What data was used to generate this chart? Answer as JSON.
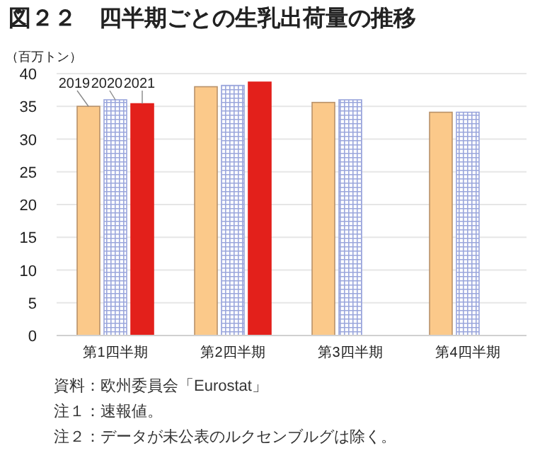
{
  "chart_data": {
    "type": "bar",
    "title": "図２２　四半期ごとの生乳出荷量の推移",
    "ylabel": "（百万トン）",
    "categories": [
      "第1四半期",
      "第2四半期",
      "第3四半期",
      "第4四半期"
    ],
    "series": [
      {
        "name": "2019",
        "color": "#fbc98a",
        "values": [
          35.0,
          38.0,
          35.6,
          34.1
        ]
      },
      {
        "name": "2020",
        "color": "#9aa6dc",
        "values": [
          36.0,
          38.2,
          36.0,
          34.1
        ]
      },
      {
        "name": "2021",
        "color": "#e3201b",
        "values": [
          35.4,
          38.7,
          null,
          null
        ]
      }
    ],
    "ylim": [
      0,
      40
    ],
    "yticks": [
      0,
      5,
      10,
      15,
      20,
      25,
      30,
      35,
      40
    ],
    "grid": "y",
    "annotations": [
      "資料：欧州委員会「Eurostat」",
      "注１：速報値。",
      "注２：データが未公表のルクセンブルグは除く。"
    ]
  }
}
